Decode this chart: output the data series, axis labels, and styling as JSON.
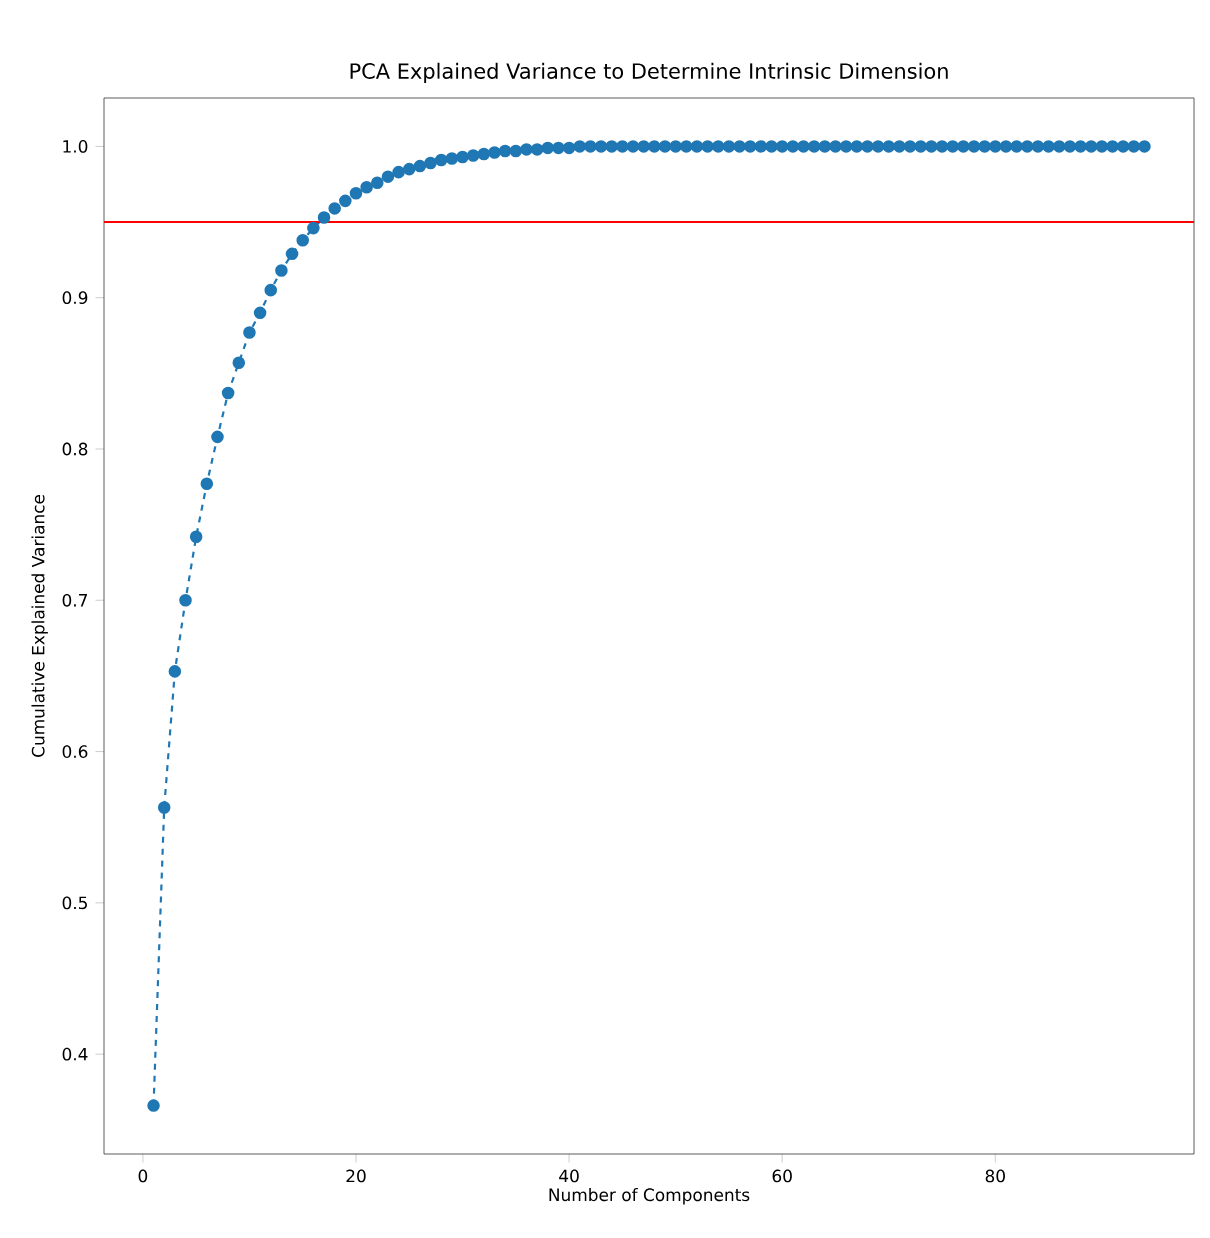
{
  "chart_data": {
    "type": "line",
    "title": "PCA Explained Variance to Determine Intrinsic Dimension",
    "xlabel": "Number of Components",
    "ylabel": "Cumulative Explained Variance",
    "x": [
      1,
      2,
      3,
      4,
      5,
      6,
      7,
      8,
      9,
      10,
      11,
      12,
      13,
      14,
      15,
      16,
      17,
      18,
      19,
      20,
      21,
      22,
      23,
      24,
      25,
      26,
      27,
      28,
      29,
      30,
      31,
      32,
      33,
      34,
      35,
      36,
      37,
      38,
      39,
      40,
      41,
      42,
      43,
      44,
      45,
      46,
      47,
      48,
      49,
      50,
      51,
      52,
      53,
      54,
      55,
      56,
      57,
      58,
      59,
      60,
      61,
      62,
      63,
      64,
      65,
      66,
      67,
      68,
      69,
      70,
      71,
      72,
      73,
      74,
      75,
      76,
      77,
      78,
      79,
      80,
      81,
      82,
      83,
      84,
      85,
      86,
      87,
      88,
      89,
      90,
      91,
      92,
      93,
      94
    ],
    "series": [
      {
        "color": "#1f77b4",
        "values": [
          0.366,
          0.563,
          0.653,
          0.7,
          0.742,
          0.777,
          0.808,
          0.837,
          0.857,
          0.877,
          0.89,
          0.905,
          0.918,
          0.929,
          0.938,
          0.946,
          0.953,
          0.959,
          0.964,
          0.969,
          0.973,
          0.976,
          0.98,
          0.983,
          0.985,
          0.987,
          0.989,
          0.991,
          0.992,
          0.993,
          0.994,
          0.995,
          0.996,
          0.997,
          0.997,
          0.998,
          0.998,
          0.999,
          0.999,
          0.999,
          1.0,
          1.0,
          1.0,
          1.0,
          1.0,
          1.0,
          1.0,
          1.0,
          1.0,
          1.0,
          1.0,
          1.0,
          1.0,
          1.0,
          1.0,
          1.0,
          1.0,
          1.0,
          1.0,
          1.0,
          1.0,
          1.0,
          1.0,
          1.0,
          1.0,
          1.0,
          1.0,
          1.0,
          1.0,
          1.0,
          1.0,
          1.0,
          1.0,
          1.0,
          1.0,
          1.0,
          1.0,
          1.0,
          1.0,
          1.0,
          1.0,
          1.0,
          1.0,
          1.0,
          1.0,
          1.0,
          1.0,
          1.0,
          1.0,
          1.0,
          1.0,
          1.0,
          1.0,
          1.0
        ]
      }
    ],
    "marker": "circle",
    "line_style": "dashed",
    "xlim": [
      -3.65,
      98.65
    ],
    "ylim": [
      0.334,
      1.032
    ],
    "xticks": [
      0,
      20,
      40,
      60,
      80
    ],
    "yticks": [
      0.4,
      0.5,
      0.6,
      0.7,
      0.8,
      0.9,
      {
        "value": 1.0,
        "label": "1.0"
      }
    ],
    "ref_lines": [
      {
        "axis": "y",
        "value": 0.95,
        "color": "#ff0000"
      }
    ]
  }
}
